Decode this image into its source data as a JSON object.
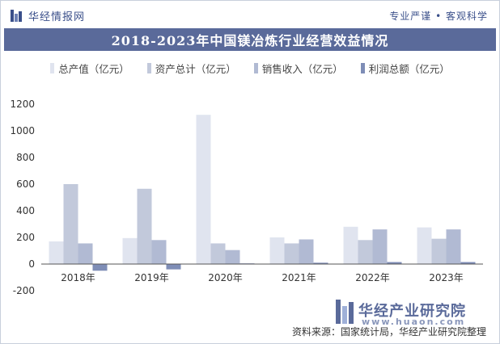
{
  "header": {
    "brand": "华经情报网",
    "tagline": "专业严谨 • 客观科学"
  },
  "watermark": {
    "main": "华经产业研究院",
    "sub": "www.huaon.com"
  },
  "source_text": "资料来源：国家统计局，华经产业研究院整理",
  "colors": {
    "title_bg": "#5a6a9a",
    "series": [
      "#e0e4ef",
      "#c2c9db",
      "#b1bad3",
      "#7e8db6"
    ]
  },
  "chart_data": {
    "type": "bar",
    "title": "2018-2023年中国镁冶炼行业经营效益情况",
    "categories": [
      "2018年",
      "2019年",
      "2020年",
      "2021年",
      "2022年",
      "2023年"
    ],
    "series": [
      {
        "name": "总产值（亿元）",
        "values": [
          170,
          195,
          1120,
          200,
          280,
          275
        ]
      },
      {
        "name": "资产总计（亿元）",
        "values": [
          600,
          565,
          155,
          155,
          180,
          190
        ]
      },
      {
        "name": "销售收入（亿元）",
        "values": [
          155,
          180,
          105,
          185,
          260,
          260
        ]
      },
      {
        "name": "利润总额（亿元）",
        "values": [
          -50,
          -40,
          5,
          10,
          15,
          15
        ]
      }
    ],
    "xlabel": "",
    "ylabel": "",
    "ylim": [
      -200,
      1200
    ],
    "yticks": [
      -200,
      0,
      200,
      400,
      600,
      800,
      1000,
      1200
    ],
    "grid": false,
    "legend_position": "top"
  }
}
